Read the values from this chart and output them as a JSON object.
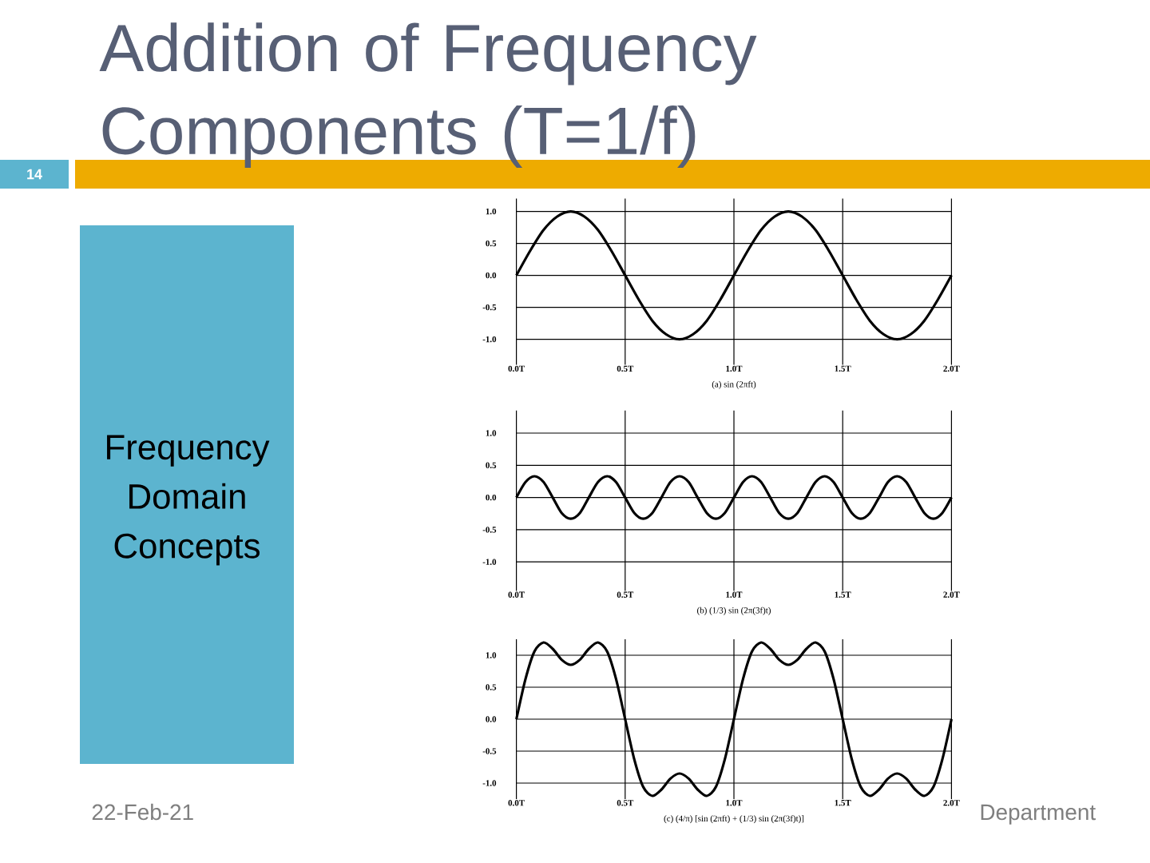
{
  "chart_data": [
    {
      "type": "other",
      "title": "Addition of Frequency Components (T=1/f)",
      "annotations": [
        "Frequency Domain Concepts",
        "22-Feb-21",
        "Department",
        "14"
      ]
    },
    {
      "type": "line",
      "xlabel": "(a) sin (2πft)",
      "xlim": [
        0,
        2
      ],
      "xticks": [
        {
          "value": 0,
          "label": "0.0T"
        },
        {
          "value": 0.5,
          "label": "0.5T"
        },
        {
          "value": 1,
          "label": "1.0T"
        },
        {
          "value": 1.5,
          "label": "1.5T"
        },
        {
          "value": 2,
          "label": "2.0T"
        }
      ],
      "ylim": [
        -1.4,
        1.2
      ],
      "yticks": [
        {
          "value": -1,
          "label": "-1.0"
        },
        {
          "value": -0.5,
          "label": "-0.5"
        },
        {
          "value": 0,
          "label": "0.0"
        },
        {
          "value": 0.5,
          "label": "0.5"
        },
        {
          "value": 1,
          "label": "1.0"
        }
      ],
      "grid": true,
      "x": [
        0,
        0.0625,
        0.125,
        0.1875,
        0.25,
        0.3125,
        0.375,
        0.4375,
        0.5,
        0.5625,
        0.625,
        0.6875,
        0.75,
        0.8125,
        0.875,
        0.9375,
        1,
        1.0625,
        1.125,
        1.1875,
        1.25,
        1.3125,
        1.375,
        1.4375,
        1.5,
        1.5625,
        1.625,
        1.6875,
        1.75,
        1.8125,
        1.875,
        1.9375,
        2
      ],
      "series": [
        {
          "color": "#000000",
          "values": [
            0,
            0.38,
            0.71,
            0.92,
            1,
            0.92,
            0.71,
            0.38,
            0,
            -0.38,
            -0.71,
            -0.92,
            -1,
            -0.92,
            -0.71,
            -0.38,
            0,
            0.38,
            0.71,
            0.92,
            1,
            0.92,
            0.71,
            0.38,
            0,
            -0.38,
            -0.71,
            -0.92,
            -1,
            -0.92,
            -0.71,
            -0.38,
            0
          ]
        }
      ]
    },
    {
      "type": "line",
      "xlabel": "(b) (1/3) sin (2π(3f)t)",
      "xlim": [
        0,
        2
      ],
      "xticks": [
        {
          "value": 0,
          "label": "0.0T"
        },
        {
          "value": 0.5,
          "label": "0.5T"
        },
        {
          "value": 1,
          "label": "1.0T"
        },
        {
          "value": 1.5,
          "label": "1.5T"
        },
        {
          "value": 2,
          "label": "2.0T"
        }
      ],
      "ylim": [
        -1.45,
        1.35
      ],
      "yticks": [
        {
          "value": -1,
          "label": "-1.0"
        },
        {
          "value": -0.5,
          "label": "-0.5"
        },
        {
          "value": 0,
          "label": "0.0"
        },
        {
          "value": 0.5,
          "label": "0.5"
        },
        {
          "value": 1,
          "label": "1.0"
        }
      ],
      "grid": true,
      "x": [
        0,
        0.042,
        0.083,
        0.125,
        0.167,
        0.208,
        0.25,
        0.292,
        0.333,
        0.375,
        0.417,
        0.458,
        0.5,
        0.542,
        0.583,
        0.625,
        0.667,
        0.708,
        0.75,
        0.792,
        0.833,
        0.875,
        0.917,
        0.958,
        1,
        1.042,
        1.083,
        1.125,
        1.167,
        1.208,
        1.25,
        1.292,
        1.333,
        1.375,
        1.417,
        1.458,
        1.5,
        1.542,
        1.583,
        1.625,
        1.667,
        1.708,
        1.75,
        1.792,
        1.833,
        1.875,
        1.917,
        1.958,
        2
      ],
      "series": [
        {
          "color": "#000000",
          "values": [
            0,
            0.24,
            0.33,
            0.24,
            0,
            -0.24,
            -0.33,
            -0.24,
            0,
            0.24,
            0.33,
            0.24,
            0,
            -0.24,
            -0.33,
            -0.24,
            0,
            0.24,
            0.33,
            0.24,
            0,
            -0.24,
            -0.33,
            -0.24,
            0,
            0.24,
            0.33,
            0.24,
            0,
            -0.24,
            -0.33,
            -0.24,
            0,
            0.24,
            0.33,
            0.24,
            0,
            -0.24,
            -0.33,
            -0.24,
            0,
            0.24,
            0.33,
            0.24,
            0,
            -0.24,
            -0.33,
            -0.24,
            0
          ]
        }
      ]
    },
    {
      "type": "line",
      "xlabel": "(c) (4/π) [sin (2πft) + (1/3) sin (2π(3f)t)]",
      "xlim": [
        0,
        2
      ],
      "xticks": [
        {
          "value": 0,
          "label": "0.0T"
        },
        {
          "value": 0.5,
          "label": "0.5T"
        },
        {
          "value": 1,
          "label": "1.0T"
        },
        {
          "value": 1.5,
          "label": "1.5T"
        },
        {
          "value": 2,
          "label": "2.0T"
        }
      ],
      "ylim": [
        -1.25,
        1.25
      ],
      "yticks": [
        {
          "value": -1,
          "label": "-1.0"
        },
        {
          "value": -0.5,
          "label": "-0.5"
        },
        {
          "value": 0,
          "label": "0.0"
        },
        {
          "value": 0.5,
          "label": "0.5"
        },
        {
          "value": 1,
          "label": "1.0"
        }
      ],
      "grid": true,
      "x": [
        0,
        0.042,
        0.083,
        0.125,
        0.167,
        0.208,
        0.25,
        0.292,
        0.333,
        0.375,
        0.417,
        0.458,
        0.5,
        0.542,
        0.583,
        0.625,
        0.667,
        0.708,
        0.75,
        0.792,
        0.833,
        0.875,
        0.917,
        0.958,
        1,
        1.042,
        1.083,
        1.125,
        1.167,
        1.208,
        1.25,
        1.292,
        1.333,
        1.375,
        1.417,
        1.458,
        1.5,
        1.542,
        1.583,
        1.625,
        1.667,
        1.708,
        1.75,
        1.792,
        1.833,
        1.875,
        1.917,
        1.958,
        2
      ],
      "series": [
        {
          "color": "#000000",
          "values": [
            0,
            0.63,
            1.06,
            1.2,
            1.1,
            0.93,
            0.85,
            0.93,
            1.1,
            1.2,
            1.06,
            0.63,
            0,
            -0.63,
            -1.06,
            -1.2,
            -1.1,
            -0.93,
            -0.85,
            -0.93,
            -1.1,
            -1.2,
            -1.06,
            -0.63,
            0,
            0.63,
            1.06,
            1.2,
            1.1,
            0.93,
            0.85,
            0.93,
            1.1,
            1.2,
            1.06,
            0.63,
            0,
            -0.63,
            -1.06,
            -1.2,
            -1.1,
            -0.93,
            -0.85,
            -0.93,
            -1.1,
            -1.2,
            -1.06,
            -0.63,
            0
          ]
        }
      ]
    }
  ]
}
